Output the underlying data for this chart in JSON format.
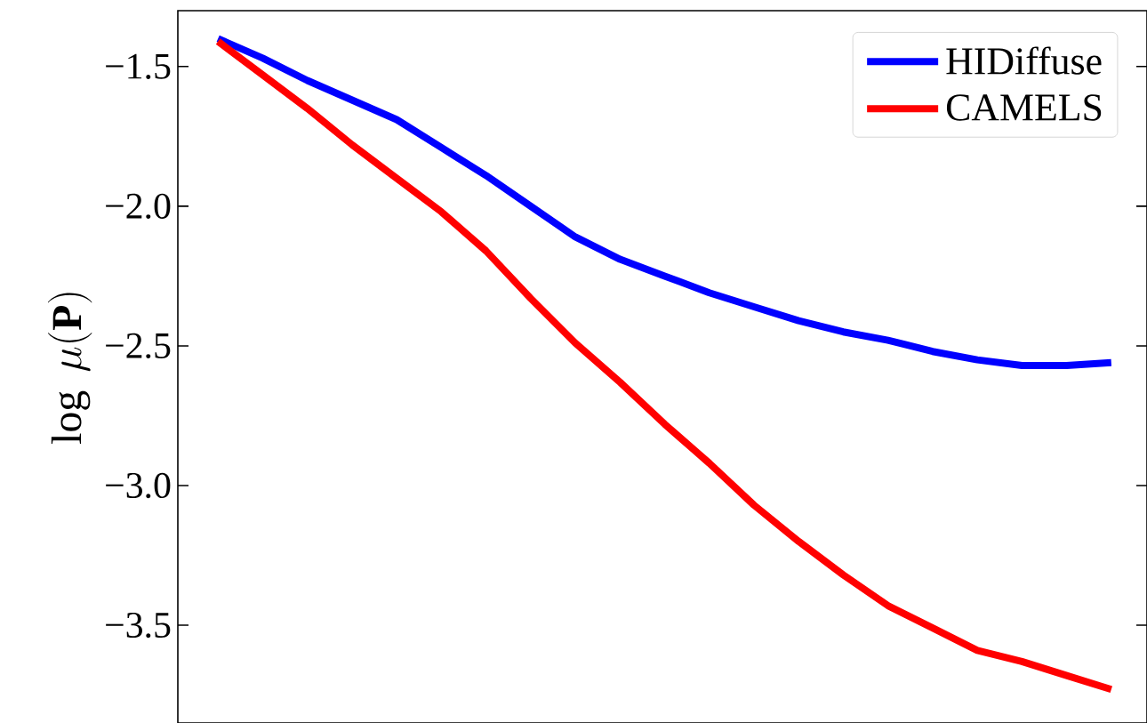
{
  "chart_data": {
    "type": "line",
    "ylabel": "\\log\\ \\mu(\\mathbf{P})",
    "categories": [
      null,
      null,
      null,
      null,
      null,
      null,
      null,
      null,
      null,
      null,
      null,
      null,
      null,
      null,
      null,
      null,
      null,
      null,
      null,
      null,
      null
    ],
    "series": [
      {
        "name": "HIDiffuse",
        "color": "#0000ff",
        "values": [
          -1.4,
          -1.47,
          -1.55,
          -1.62,
          -1.69,
          -1.79,
          -1.89,
          -2.0,
          -2.11,
          -2.19,
          -2.25,
          -2.31,
          -2.36,
          -2.41,
          -2.45,
          -2.48,
          -2.52,
          -2.55,
          -2.57,
          -2.57,
          -2.56
        ]
      },
      {
        "name": "CAMELS",
        "color": "#ff0000",
        "values": [
          -1.41,
          -1.53,
          -1.65,
          -1.78,
          -1.9,
          -2.02,
          -2.16,
          -2.33,
          -2.49,
          -2.63,
          -2.78,
          -2.92,
          -3.07,
          -3.2,
          -3.32,
          -3.43,
          -3.51,
          -3.59,
          -3.63,
          -3.68,
          -3.73
        ]
      }
    ],
    "ylim": [
      -3.85,
      -1.3
    ],
    "yticks": [
      {
        "value": -3.5,
        "label": "−3.5"
      },
      {
        "value": -3.0,
        "label": "−3.0"
      },
      {
        "value": -2.5,
        "label": "−2.5"
      },
      {
        "value": -2.0,
        "label": "−2.0"
      },
      {
        "value": -1.5,
        "label": "−1.5"
      }
    ],
    "tick_labels": "y",
    "grid": false,
    "legend": "top right",
    "marker": "none",
    "line_style": "solid"
  }
}
